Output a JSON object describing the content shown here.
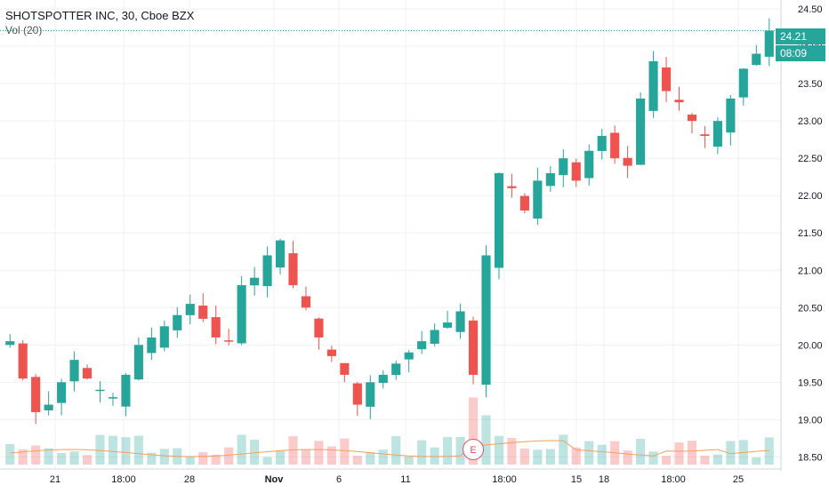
{
  "header": {
    "title": "SHOTSPOTTER INC, 30, Cboe BZX",
    "volume_label": "Vol (20)"
  },
  "price_axis": {
    "ticks": [
      "24.50",
      "24.00",
      "23.50",
      "23.00",
      "22.50",
      "22.00",
      "21.50",
      "21.00",
      "20.50",
      "20.00",
      "19.50",
      "19.00",
      "18.50"
    ],
    "last_price": "24.21",
    "countdown": "08:09"
  },
  "time_axis": {
    "labels": [
      "21",
      "18:00",
      "28",
      "Nov",
      "6",
      "11",
      "18:00",
      "15",
      "18",
      "18:00",
      "25"
    ]
  },
  "markers": {
    "earnings": "E"
  },
  "colors": {
    "up": "#26a69a",
    "down": "#ef5350",
    "volume_ma": "#f5a05a",
    "last_price_line": "#26a69a"
  },
  "chart_data": {
    "type": "candlestick",
    "title": "SHOTSPOTTER INC, 30, Cboe BZX",
    "indicator": "Vol (20)",
    "ylim": [
      18.35,
      24.62
    ],
    "grid": true,
    "last_price": 24.21,
    "candles_approx_close": [
      20.05,
      19.55,
      19.1,
      19.2,
      19.5,
      19.8,
      19.55,
      19.4,
      19.3,
      19.6,
      20.0,
      20.1,
      20.25,
      20.4,
      20.55,
      20.35,
      20.1,
      20.05,
      20.8,
      20.9,
      21.2,
      21.4,
      20.8,
      20.5,
      20.1,
      19.85,
      19.6,
      19.2,
      19.5,
      19.6,
      19.75,
      19.9,
      20.05,
      20.2,
      20.3,
      20.45,
      19.6,
      21.2,
      22.3,
      22.1,
      21.8,
      22.2,
      22.3,
      22.5,
      22.2,
      22.6,
      22.8,
      22.5,
      22.4,
      23.3,
      23.8,
      23.4,
      23.25,
      23.0,
      22.8,
      23.0,
      23.3,
      23.7,
      23.9,
      24.21
    ]
  }
}
